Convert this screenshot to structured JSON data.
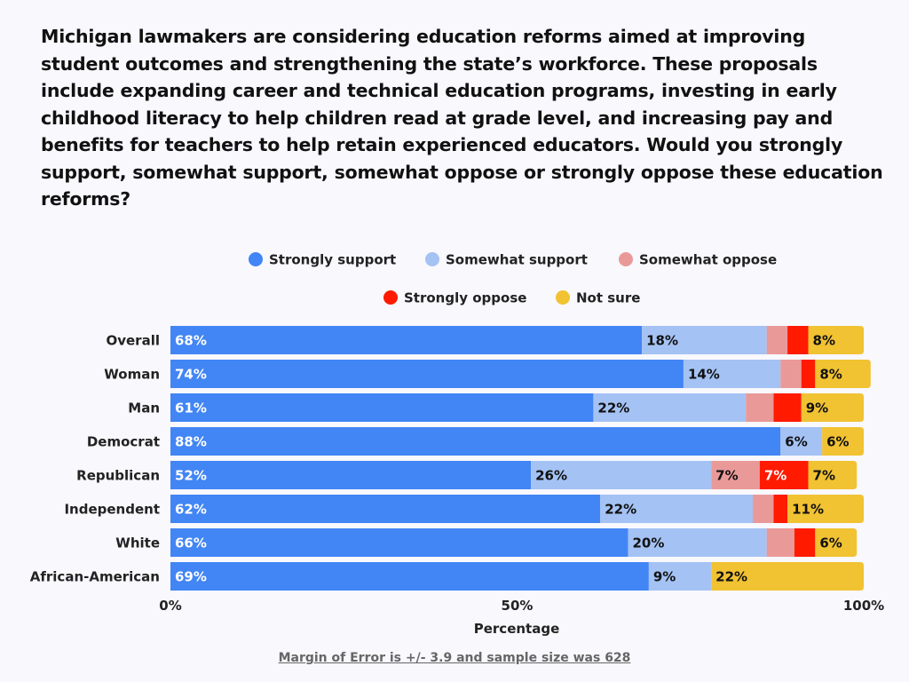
{
  "chart_data": {
    "type": "bar",
    "orientation": "horizontal",
    "stacked": true,
    "title": "Michigan lawmakers are considering education reforms aimed at improving student outcomes and strengthening the state’s workforce. These proposals include expanding career and technical education programs, investing in early childhood literacy to help children read at grade level, and increasing pay and benefits for teachers to help retain experienced educators. Would you strongly support, somewhat support, somewhat oppose or strongly oppose these education reforms?",
    "xlabel": "Percentage",
    "ylabel": "",
    "xlim": [
      0,
      100
    ],
    "xticks": [
      "0%",
      "50%",
      "100%"
    ],
    "legend_position": "top",
    "categories": [
      "Overall",
      "Woman",
      "Man",
      "Democrat",
      "Republican",
      "Independent",
      "White",
      "African-American"
    ],
    "series": [
      {
        "name": "Strongly support",
        "color": "#4285f4",
        "label_color": "#ffffff",
        "values": [
          68,
          74,
          61,
          88,
          52,
          62,
          66,
          69
        ]
      },
      {
        "name": "Somewhat support",
        "color": "#a4c2f4",
        "label_color": "#111111",
        "values": [
          18,
          14,
          22,
          6,
          26,
          22,
          20,
          9
        ]
      },
      {
        "name": "Somewhat oppose",
        "color": "#ea9999",
        "label_color": "#111111",
        "values": [
          3,
          3,
          4,
          0,
          7,
          3,
          4,
          0
        ]
      },
      {
        "name": "Strongly oppose",
        "color": "#ff1a00",
        "label_color": "#ffffff",
        "values": [
          3,
          2,
          4,
          0,
          7,
          2,
          3,
          0
        ]
      },
      {
        "name": "Not sure",
        "color": "#f1c232",
        "label_color": "#111111",
        "values": [
          8,
          8,
          9,
          6,
          7,
          11,
          6,
          22
        ]
      }
    ],
    "label_threshold": 5
  },
  "footer": "Margin of Error is +/- 3.9 and sample size was 628"
}
